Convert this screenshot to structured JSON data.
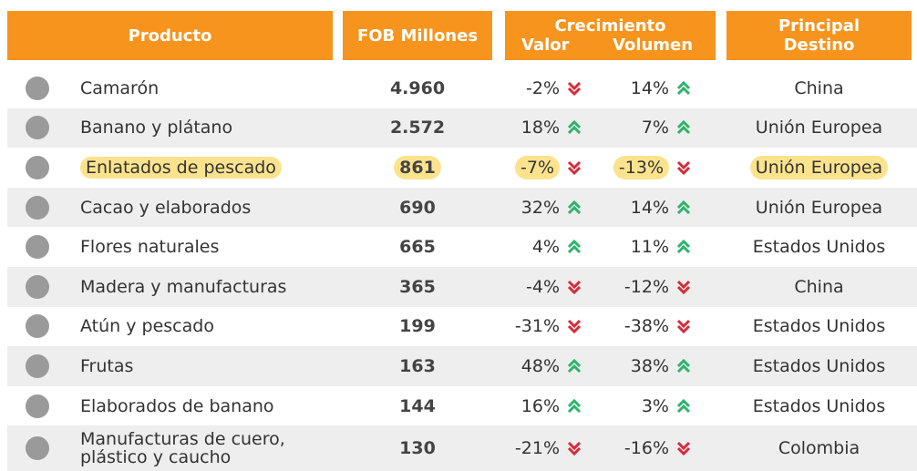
{
  "header": {
    "producto": "Producto",
    "fob": "FOB Millones",
    "crecimiento": "Crecimiento",
    "valor": "Valor",
    "volumen": "Volumen",
    "destino": "Principal Destino"
  },
  "table": {
    "rows": [
      {
        "producto": "Camarón",
        "fob": "4.960",
        "valor": "-2%",
        "volumen": "14%",
        "destino": "China"
      },
      {
        "producto": "Banano y plátano",
        "fob": "2.572",
        "valor": "18%",
        "volumen": "7%",
        "destino": "Unión Europea"
      },
      {
        "producto": "Enlatados de pescado",
        "fob": "861",
        "valor": "-7%",
        "volumen": "-13%",
        "destino": "Unión Europea",
        "highlighted": true
      },
      {
        "producto": "Cacao y elaborados",
        "fob": "690",
        "valor": "32%",
        "volumen": "14%",
        "destino": "Unión Europea"
      },
      {
        "producto": "Flores naturales",
        "fob": "665",
        "valor": "4%",
        "volumen": "11%",
        "destino": "Estados Unidos"
      },
      {
        "producto": "Madera y manufacturas",
        "fob": "365",
        "valor": "-4%",
        "volumen": "-12%",
        "destino": "China"
      },
      {
        "producto": "Atún y pescado",
        "fob": "199",
        "valor": "-31%",
        "volumen": "-38%",
        "destino": "Estados Unidos"
      },
      {
        "producto": "Frutas",
        "fob": "163",
        "valor": "48%",
        "volumen": "38%",
        "destino": "Estados Unidos"
      },
      {
        "producto": "Elaborados de banano",
        "fob": "144",
        "valor": "16%",
        "volumen": "3%",
        "destino": "Estados Unidos"
      },
      {
        "producto": "Manufacturas de cuero, plástico y caucho",
        "fob": "130",
        "valor": "-21%",
        "volumen": "-16%",
        "destino": "Colombia"
      }
    ]
  }
}
